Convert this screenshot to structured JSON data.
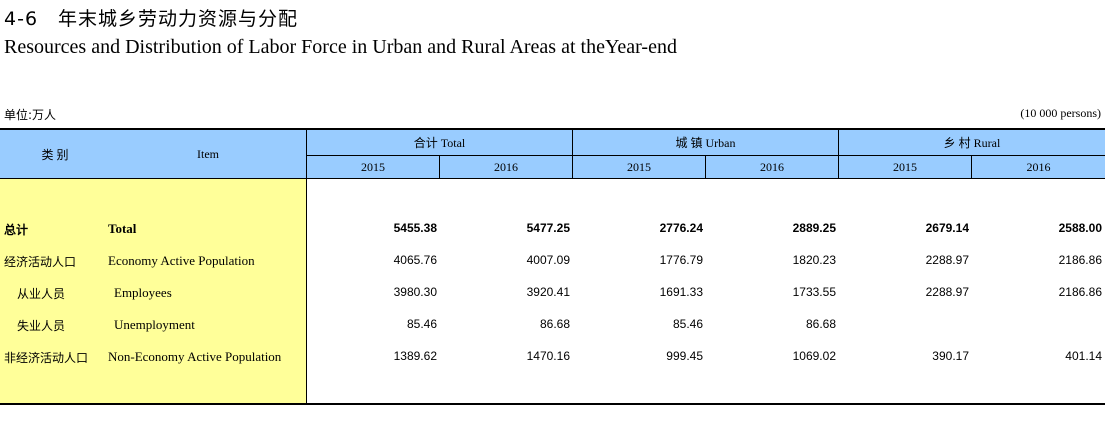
{
  "title": {
    "cn": "4-6　年末城乡劳动力资源与分配",
    "en": "Resources and Distribution of Labor Force in Urban and Rural Areas  at theYear-end"
  },
  "unit": {
    "left": "单位:万人",
    "right": "(10 000 persons)"
  },
  "header": {
    "category_cn": "类  别",
    "item_en": "Item",
    "groups": [
      {
        "label": "合计   Total",
        "years": [
          "2015",
          "2016"
        ]
      },
      {
        "label": "城  镇   Urban",
        "years": [
          "2015",
          "2016"
        ]
      },
      {
        "label": "乡  村    Rural",
        "years": [
          "2015",
          "2016"
        ]
      }
    ]
  },
  "rows": [
    {
      "cn": "总计",
      "en": "Total",
      "bold": true,
      "indent": false,
      "values": [
        "5455.38",
        "5477.25",
        "2776.24",
        "2889.25",
        "2679.14",
        "2588.00"
      ]
    },
    {
      "cn": "经济活动人口",
      "en": "Economy Active Population",
      "bold": false,
      "indent": false,
      "values": [
        "4065.76",
        "4007.09",
        "1776.79",
        "1820.23",
        "2288.97",
        "2186.86"
      ]
    },
    {
      "cn": "从业人员",
      "en": "Employees",
      "bold": false,
      "indent": true,
      "values": [
        "3980.30",
        "3920.41",
        "1691.33",
        "1733.55",
        "2288.97",
        "2186.86"
      ]
    },
    {
      "cn": "失业人员",
      "en": "Unemployment",
      "bold": false,
      "indent": true,
      "values": [
        "85.46",
        "86.68",
        "85.46",
        "86.68",
        "",
        ""
      ]
    },
    {
      "cn": "非经济活动人口",
      "en": "Non-Economy Active Population",
      "bold": false,
      "indent": false,
      "values": [
        "1389.62",
        "1470.16",
        "999.45",
        "1069.02",
        "390.17",
        "401.14"
      ]
    }
  ]
}
